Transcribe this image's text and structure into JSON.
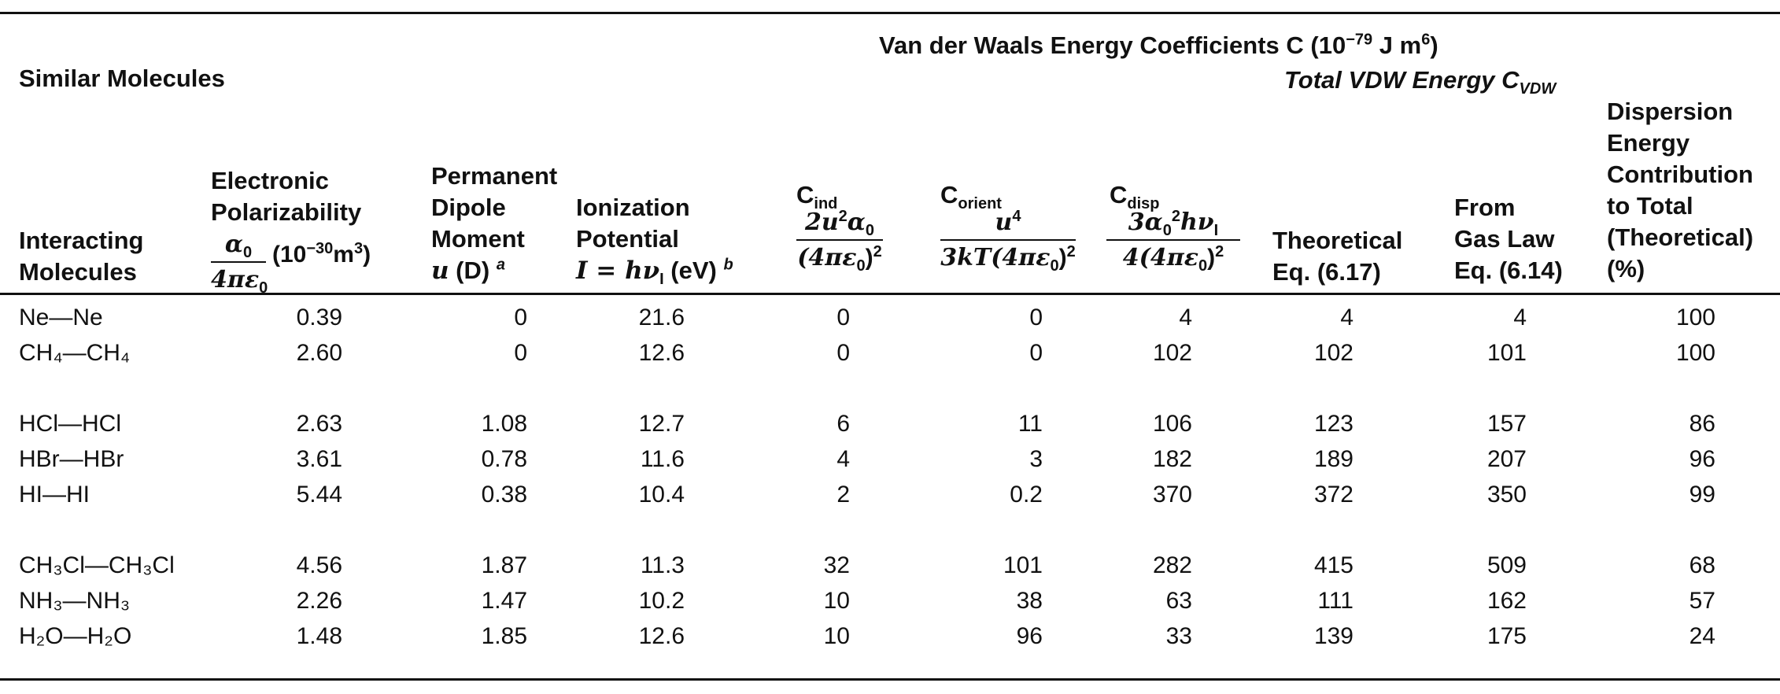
{
  "header": {
    "similar_molecules": "Similar Molecules",
    "vdw_title": "Van der Waals Energy Coefficients C (10",
    "vdw_exp": "−79",
    "vdw_unit": " J m",
    "vdw_unit_exp": "6",
    "vdw_close": ")",
    "total_vdw": "Total VDW Energy C",
    "total_vdw_sub": "VDW",
    "col_interacting": [
      "Interacting",
      "Molecules"
    ],
    "col_polar": [
      "Electronic",
      "Polarizability"
    ],
    "col_polar_frac_num": "α",
    "col_polar_frac_num_sub": "0",
    "col_polar_frac_den": "4πε",
    "col_polar_frac_den_sub": "0",
    "col_polar_unit": "(10",
    "col_polar_unit_exp": "−30",
    "col_polar_unit_tail": "m",
    "col_polar_unit_tail_exp": "3",
    "col_polar_unit_close": ")",
    "col_dipole": [
      "Permanent",
      "Dipole",
      "Moment"
    ],
    "col_dipole_last": "u",
    "col_dipole_last_tail": " (D) ",
    "col_dipole_note": "a",
    "col_ion": [
      "Ionization",
      "Potential"
    ],
    "col_ion_last_a": "I",
    "col_ion_last_b": " = hν",
    "col_ion_last_sub": "I",
    "col_ion_last_tail": " (eV) ",
    "col_ion_note": "b",
    "col_ind": "C",
    "col_ind_sub": "ind",
    "col_ind_num": "2u",
    "col_ind_num_exp": "2",
    "col_ind_num_tail": "α",
    "col_ind_num_tail_sub": "0",
    "col_ind_den": "(4πε",
    "col_ind_den_sub": "0",
    "col_ind_den_close": ")",
    "col_ind_den_exp": "2",
    "col_orient": "C",
    "col_orient_sub": "orient",
    "col_orient_num": "u",
    "col_orient_num_exp": "4",
    "col_orient_den": "3kT(4πε",
    "col_orient_den_sub": "0",
    "col_orient_den_close": ")",
    "col_orient_den_exp": "2",
    "col_disp": "C",
    "col_disp_sub": "disp",
    "col_disp_num": "3α",
    "col_disp_num_sub": "0",
    "col_disp_num_exp": "2",
    "col_disp_num_tail": "hν",
    "col_disp_num_tail_sub": "I",
    "col_disp_den": "4(4πε",
    "col_disp_den_sub": "0",
    "col_disp_den_close": ")",
    "col_disp_den_exp": "2",
    "col_theoretical": [
      "Theoretical",
      "Eq. (6.17)"
    ],
    "col_gaslaw": [
      "From",
      "Gas Law",
      "Eq. (6.14)"
    ],
    "col_dispersion": [
      "Dispersion",
      "Energy",
      "Contribution",
      "to Total",
      "(Theoretical)",
      "(%)"
    ]
  },
  "rows": [
    {
      "mol": "Ne—Ne",
      "polar": "0.39",
      "dipole": "0",
      "ion": "21.6",
      "ind": "0",
      "orient": "0",
      "disp": "4",
      "theo": "4",
      "gas": "4",
      "pct": "100"
    },
    {
      "mol": "CH₄—CH₄",
      "polar": "2.60",
      "dipole": "0",
      "ion": "12.6",
      "ind": "0",
      "orient": "0",
      "disp": "102",
      "theo": "102",
      "gas": "101",
      "pct": "100"
    },
    {
      "mol": "HCl—HCl",
      "polar": "2.63",
      "dipole": "1.08",
      "ion": "12.7",
      "ind": "6",
      "orient": "11",
      "disp": "106",
      "theo": "123",
      "gas": "157",
      "pct": "86"
    },
    {
      "mol": "HBr—HBr",
      "polar": "3.61",
      "dipole": "0.78",
      "ion": "11.6",
      "ind": "4",
      "orient": "3",
      "disp": "182",
      "theo": "189",
      "gas": "207",
      "pct": "96"
    },
    {
      "mol": "HI—HI",
      "polar": "5.44",
      "dipole": "0.38",
      "ion": "10.4",
      "ind": "2",
      "orient": "0.2",
      "disp": "370",
      "theo": "372",
      "gas": "350",
      "pct": "99"
    },
    {
      "mol": "CH₃Cl—CH₃Cl",
      "polar": "4.56",
      "dipole": "1.87",
      "ion": "11.3",
      "ind": "32",
      "orient": "101",
      "disp": "282",
      "theo": "415",
      "gas": "509",
      "pct": "68"
    },
    {
      "mol": "NH₃—NH₃",
      "polar": "2.26",
      "dipole": "1.47",
      "ion": "10.2",
      "ind": "10",
      "orient": "38",
      "disp": "63",
      "theo": "111",
      "gas": "162",
      "pct": "57"
    },
    {
      "mol": "H₂O—H₂O",
      "polar": "1.48",
      "dipole": "1.85",
      "ion": "12.6",
      "ind": "10",
      "orient": "96",
      "disp": "33",
      "theo": "139",
      "gas": "175",
      "pct": "24"
    }
  ]
}
